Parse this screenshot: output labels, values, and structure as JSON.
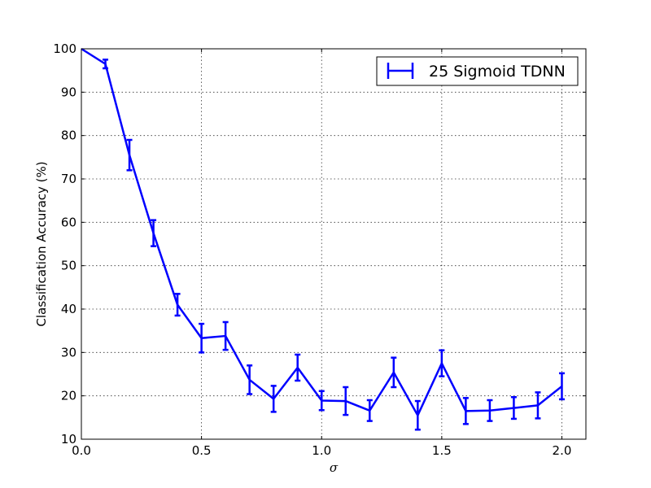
{
  "chart_data": {
    "type": "line",
    "title": "",
    "xlabel": "σ",
    "ylabel": "Classification Accuracy (%)",
    "xlim": [
      0.0,
      2.1
    ],
    "ylim": [
      10,
      100
    ],
    "grid": true,
    "legend_position": "top-right",
    "x_ticks": [
      0.0,
      0.5,
      1.0,
      1.5,
      2.0
    ],
    "x_tick_labels": [
      "0.0",
      "0.5",
      "1.0",
      "1.5",
      "2.0"
    ],
    "y_ticks": [
      10,
      20,
      30,
      40,
      50,
      60,
      70,
      80,
      90,
      100
    ],
    "y_tick_labels": [
      "10",
      "20",
      "30",
      "40",
      "50",
      "60",
      "70",
      "80",
      "90",
      "100"
    ],
    "series": [
      {
        "name": "25 Sigmoid TDNN",
        "color": "#0000ff",
        "x": [
          0.0,
          0.1,
          0.2,
          0.3,
          0.4,
          0.5,
          0.6,
          0.7,
          0.8,
          0.9,
          1.0,
          1.1,
          1.2,
          1.3,
          1.4,
          1.5,
          1.6,
          1.7,
          1.8,
          1.9,
          2.0
        ],
        "y": [
          100,
          96.5,
          75.5,
          57.5,
          41.0,
          33.3,
          33.8,
          23.7,
          19.3,
          26.5,
          18.9,
          18.8,
          16.6,
          25.4,
          15.5,
          27.5,
          16.5,
          16.6,
          17.2,
          17.8,
          22.2
        ],
        "err": [
          0,
          1.0,
          3.5,
          3.0,
          2.5,
          3.3,
          3.2,
          3.3,
          3.0,
          3.0,
          2.2,
          3.2,
          2.4,
          3.4,
          3.3,
          3.0,
          3.0,
          2.4,
          2.5,
          3.0,
          3.0
        ]
      }
    ]
  }
}
